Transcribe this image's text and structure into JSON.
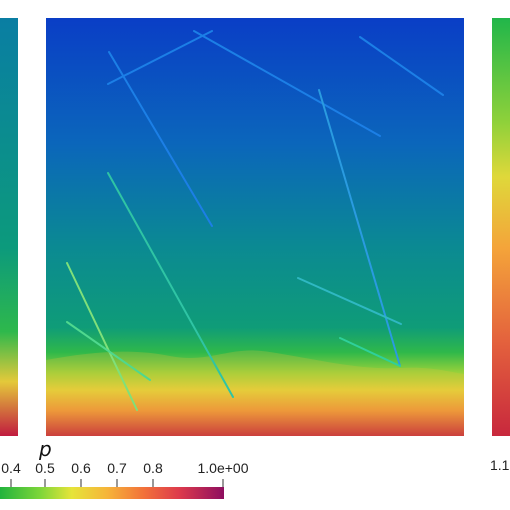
{
  "chart_data": {
    "type": "heatmap",
    "variable": "p",
    "colorbar": {
      "ticks": [
        "0.4",
        "0.5",
        "0.6",
        "0.7",
        "0.8",
        "1.0e+00"
      ],
      "colors": [
        "#1a9a3c",
        "#42c13c",
        "#8fd63a",
        "#e3e63a",
        "#f7b93a",
        "#f47a3a",
        "#e5404a",
        "#c41f56",
        "#8e0f5e"
      ]
    },
    "side_panel_right_tick": "1.1",
    "field_colors": {
      "top": "#0a3fc4",
      "upper": "#0b6ab8",
      "middle": "#0b8a8f",
      "lower": "#10a070",
      "band": "#37c23d",
      "hot": "#e6d03a",
      "bottom": "#c0173a"
    },
    "panels": [
      "left-panel",
      "main-panel",
      "right-panel"
    ]
  }
}
